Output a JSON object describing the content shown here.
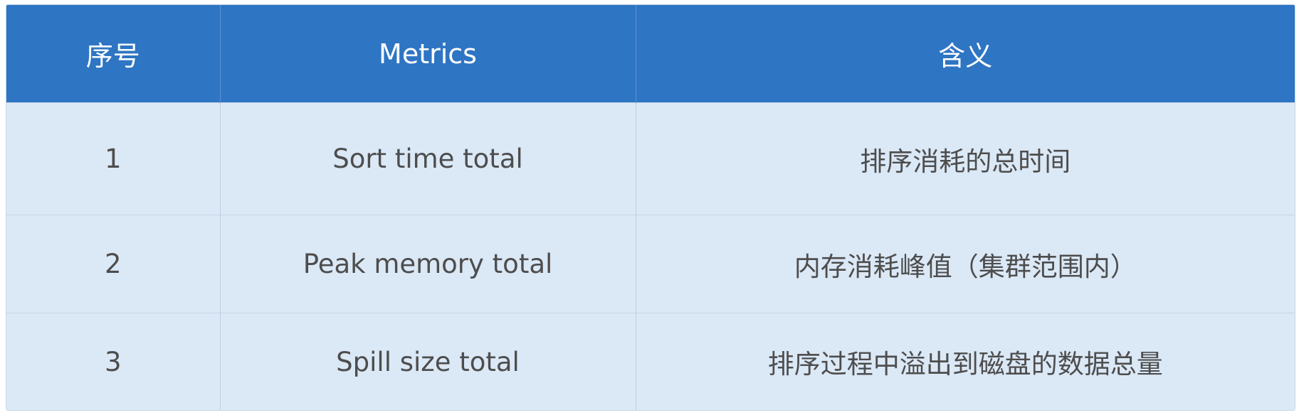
{
  "table": {
    "headers": [
      "序号",
      "Metrics",
      "含义"
    ],
    "rows": [
      [
        "1",
        "Sort time total",
        "排序消耗的总时间"
      ],
      [
        "2",
        "Peak memory total",
        "内存消耗峰值（集群范围内）"
      ],
      [
        "3",
        "Spill size total",
        "排序过程中溢出到磁盘的数据总量"
      ]
    ]
  },
  "colors": {
    "header_bg": "#2e75c4",
    "header_text": "#ffffff",
    "row_bg": "#dbe8f6",
    "row_text": "#4d4d4d"
  }
}
